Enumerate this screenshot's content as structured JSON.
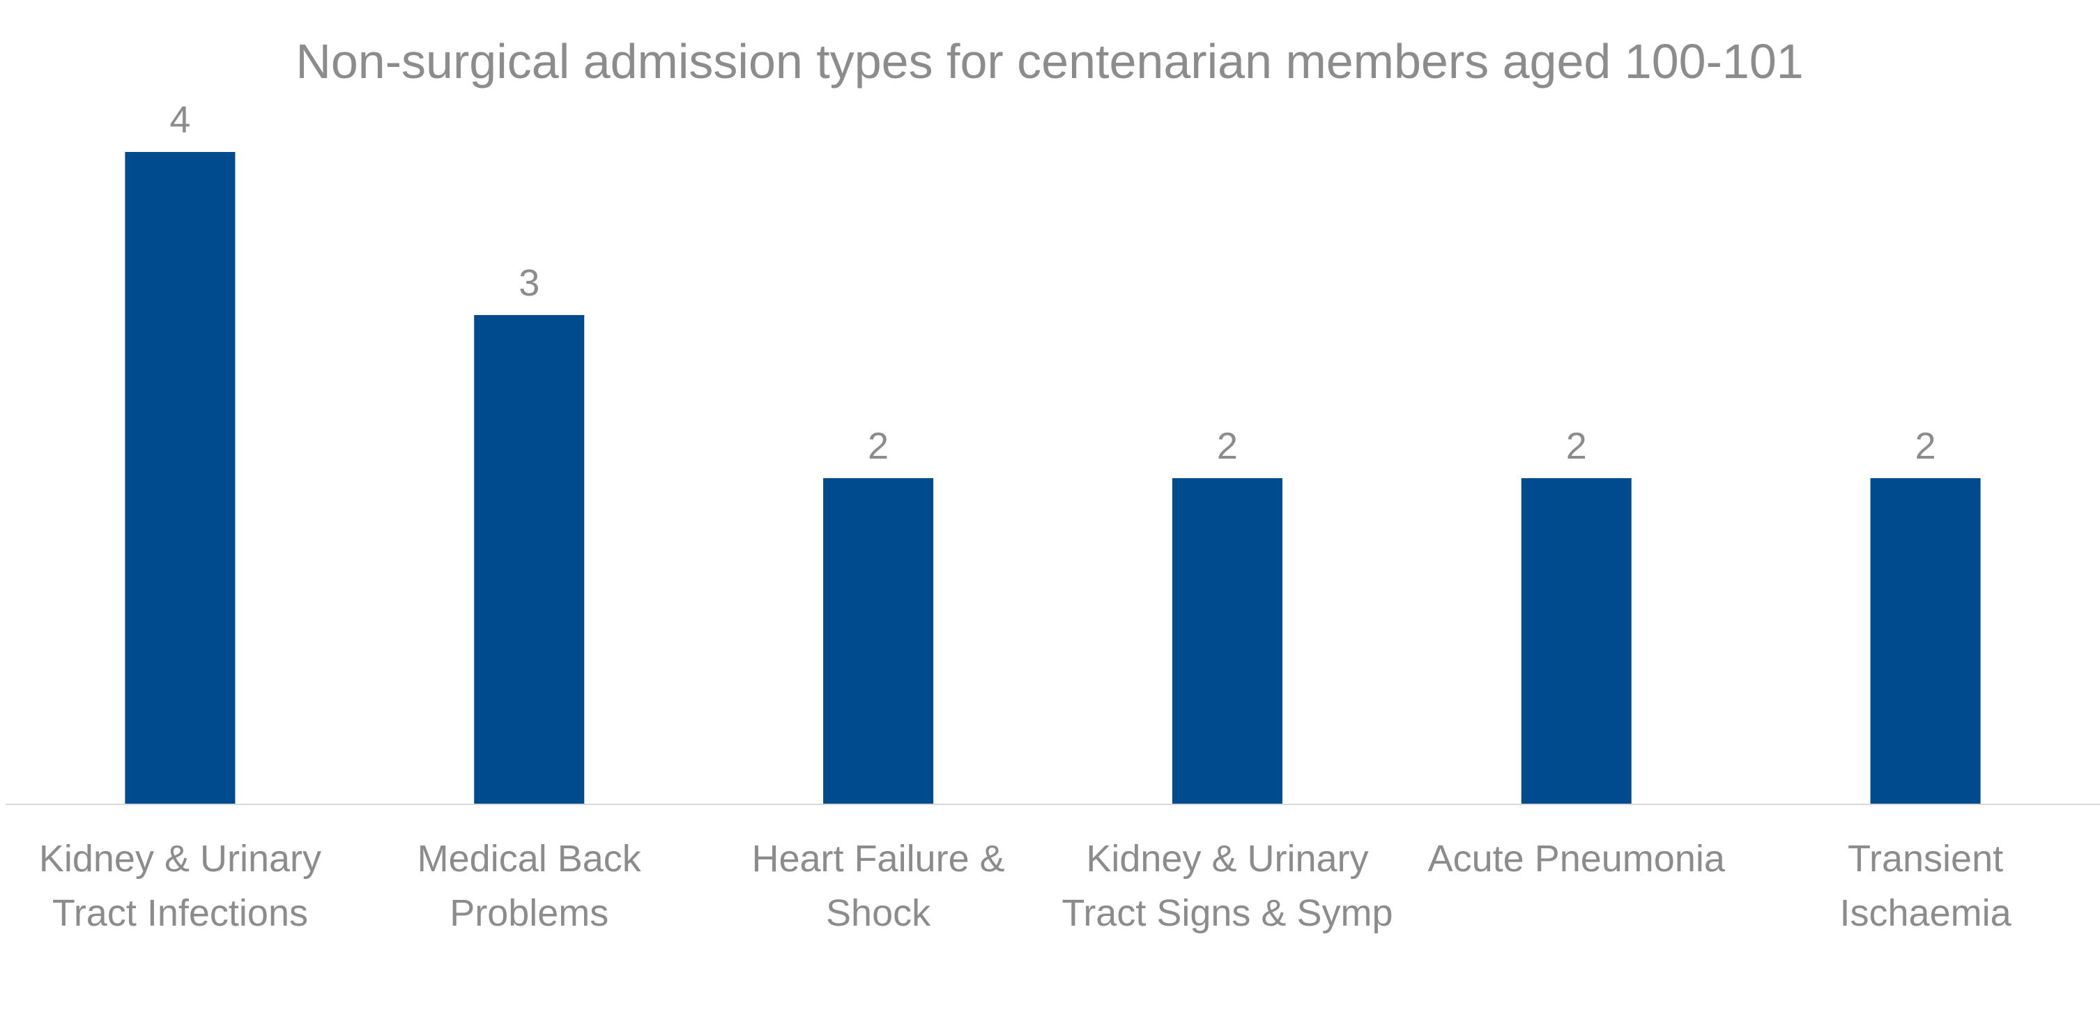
{
  "chart_data": {
    "type": "bar",
    "title": "Non-surgical admission types for centenarian members aged 100-101",
    "categories": [
      [
        "Kidney & Urinary",
        "Tract Infections"
      ],
      [
        "Medical Back",
        "Problems"
      ],
      [
        "Heart Failure &",
        "Shock"
      ],
      [
        "Kidney & Urinary",
        "Tract Signs & Symp"
      ],
      [
        "Acute Pneumonia"
      ],
      [
        "Transient",
        "Ischaemia"
      ]
    ],
    "values": [
      4,
      3,
      2,
      2,
      2,
      2
    ],
    "data_labels": [
      "4",
      "3",
      "2",
      "2",
      "2",
      "2"
    ],
    "xlabel": "",
    "ylabel": "",
    "ylim": [
      0,
      4
    ],
    "grid": false,
    "legend": "none",
    "colors": {
      "bar": "#004b8d",
      "text": "#8c8c8c",
      "axis": "#d9d9d9"
    }
  }
}
